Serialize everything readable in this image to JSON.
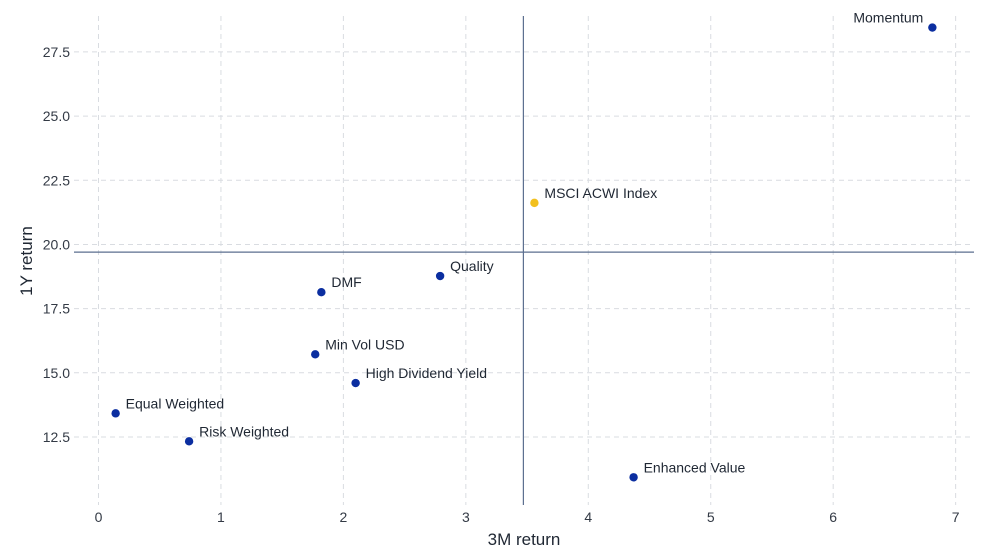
{
  "chart_data": {
    "type": "scatter",
    "title": "",
    "xlabel": "3M return",
    "ylabel": "1Y return",
    "xlim": [
      -0.2,
      7.15
    ],
    "ylim": [
      9.85,
      28.9
    ],
    "xticks": [
      0,
      1,
      2,
      3,
      4,
      5,
      6,
      7
    ],
    "xtick_labels": [
      "0",
      "1",
      "2",
      "3",
      "4",
      "5",
      "6",
      "7"
    ],
    "yticks": [
      12.5,
      15.0,
      17.5,
      20.0,
      22.5,
      25.0,
      27.5
    ],
    "ytick_labels": [
      "12.5",
      "15.0",
      "17.5",
      "20.0",
      "22.5",
      "25.0",
      "27.5"
    ],
    "grid": true,
    "reference_lines": {
      "x": 3.47,
      "y": 19.7
    },
    "colors": {
      "factor": "#0b2ea0",
      "index": "#f2c01e",
      "reference": "#5b6f8f",
      "grid": "#d9dce1"
    },
    "points": [
      {
        "label": "Momentum",
        "x": 6.81,
        "y": 28.45,
        "group": "factor",
        "label_side": "left"
      },
      {
        "label": "MSCI ACWI Index",
        "x": 3.56,
        "y": 21.62,
        "group": "index",
        "label_side": "right"
      },
      {
        "label": "Quality",
        "x": 2.79,
        "y": 18.77,
        "group": "factor",
        "label_side": "right"
      },
      {
        "label": "DMF",
        "x": 1.82,
        "y": 18.14,
        "group": "factor",
        "label_side": "right"
      },
      {
        "label": "Min Vol USD",
        "x": 1.77,
        "y": 15.72,
        "group": "factor",
        "label_side": "right"
      },
      {
        "label": "High Dividend Yield",
        "x": 2.1,
        "y": 14.6,
        "group": "factor",
        "label_side": "right"
      },
      {
        "label": "Equal Weighted",
        "x": 0.14,
        "y": 13.42,
        "group": "factor",
        "label_side": "right"
      },
      {
        "label": "Risk Weighted",
        "x": 0.74,
        "y": 12.33,
        "group": "factor",
        "label_side": "right"
      },
      {
        "label": "Enhanced Value",
        "x": 4.37,
        "y": 10.93,
        "group": "factor",
        "label_side": "right"
      }
    ]
  }
}
